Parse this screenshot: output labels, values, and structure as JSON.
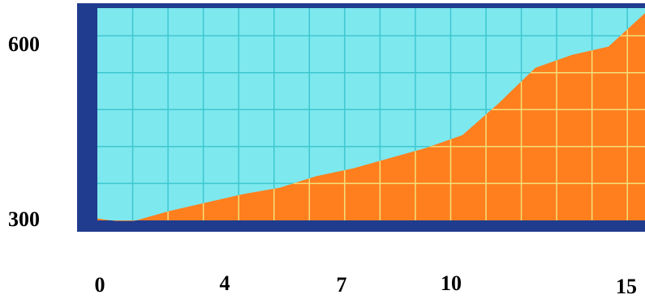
{
  "chart_data": {
    "type": "area",
    "title": "",
    "xlabel": "",
    "ylabel": "",
    "x": [
      0,
      0.5,
      1,
      2,
      3,
      4,
      5,
      6,
      7,
      8,
      9,
      10,
      11,
      12,
      13,
      14,
      15
    ],
    "values": [
      300,
      296,
      296,
      312,
      325,
      338,
      348,
      366,
      378,
      394,
      410,
      430,
      480,
      535,
      555,
      568,
      620
    ],
    "xlim": [
      0,
      15
    ],
    "ylim": [
      297,
      628
    ],
    "x_ticks": [
      "0",
      "4",
      "7",
      "10",
      "15"
    ],
    "y_ticks": [
      "300",
      "600"
    ],
    "grid": true,
    "colors": {
      "plot_background": "#7de8ee",
      "area_fill": "#ff7f1e",
      "grid_on_background": "#3ec7d0",
      "grid_on_area": "#f2e07a",
      "frame": "#1f3c8e"
    }
  }
}
